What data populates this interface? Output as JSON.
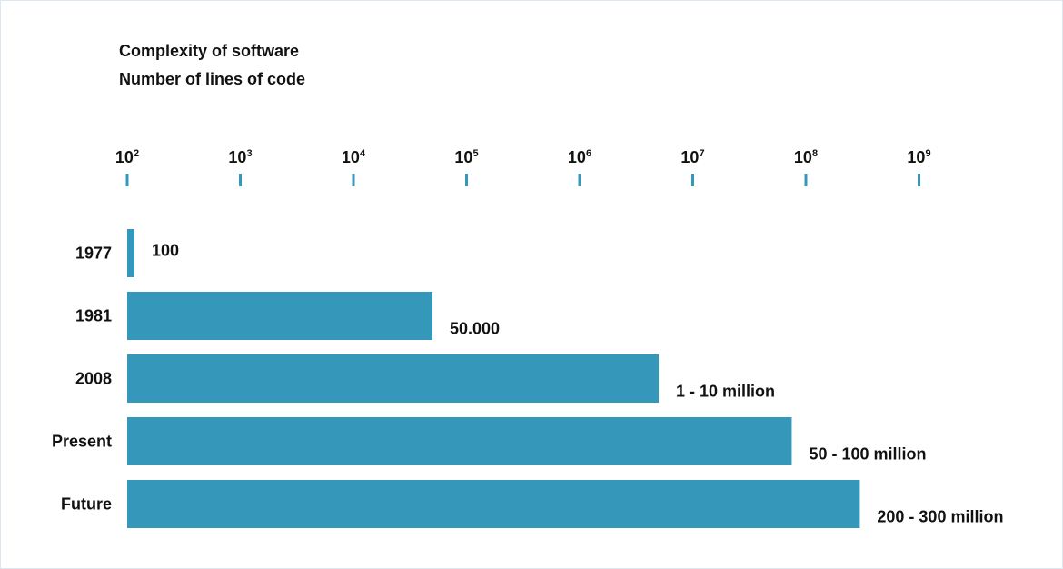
{
  "header": {
    "title": "Complexity of software",
    "subtitle": "Number of lines of code"
  },
  "chart_data": {
    "type": "bar",
    "orientation": "horizontal",
    "title": "Complexity of software",
    "subtitle": "Number of lines of code",
    "x_scale": "log10",
    "x_axis_position": "top",
    "xlim": [
      100,
      1000000000
    ],
    "x_ticks": [
      {
        "base": "10",
        "exp": "2",
        "value": 100
      },
      {
        "base": "10",
        "exp": "3",
        "value": 1000
      },
      {
        "base": "10",
        "exp": "4",
        "value": 10000
      },
      {
        "base": "10",
        "exp": "5",
        "value": 100000
      },
      {
        "base": "10",
        "exp": "6",
        "value": 1000000
      },
      {
        "base": "10",
        "exp": "7",
        "value": 10000000
      },
      {
        "base": "10",
        "exp": "8",
        "value": 100000000
      },
      {
        "base": "10",
        "exp": "9",
        "value": 1000000000
      }
    ],
    "categories": [
      "1977",
      "1981",
      "2008",
      "Present",
      "Future"
    ],
    "values": [
      100,
      50000,
      5000000,
      75000000,
      300000000
    ],
    "data_labels": [
      "100",
      "50.000",
      "1 - 10 million",
      "50 - 100 million",
      "200 - 300 million"
    ],
    "grid": false,
    "legend": "none",
    "colors": {
      "bar": "#3598bb",
      "tick": "#3598bb",
      "text": "#111111",
      "border": "#dde7f1"
    }
  }
}
